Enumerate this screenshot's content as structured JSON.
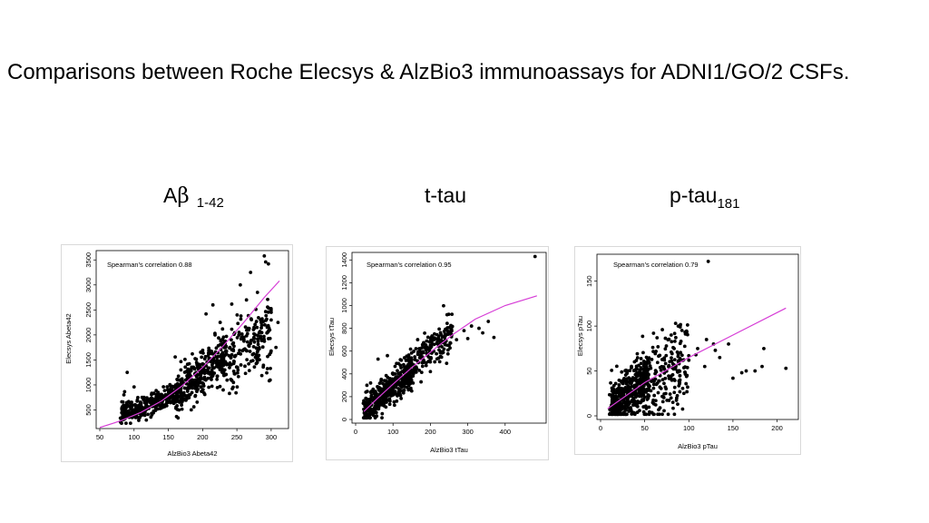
{
  "slide": {
    "title": "Comparisons between Roche Elecsys & AlzBio3 immunoassays for ADNI1/GO/2 CSFs."
  },
  "panels": [
    {
      "main": "A",
      "greek": "β",
      "sub": " 1-42"
    },
    {
      "main": "t-tau",
      "greek": "",
      "sub": ""
    },
    {
      "main": "p-tau",
      "greek": "",
      "sub": "181"
    }
  ],
  "chart_data": [
    {
      "type": "scatter",
      "xlabel": "AlzBio3 Abeta42",
      "ylabel": "Elecsys Abeta42",
      "annotation": "Spearman's correlation 0.88",
      "xlim": [
        50,
        320
      ],
      "ylim": [
        200,
        3650
      ],
      "xticks": [
        "50",
        "100",
        "150",
        "200",
        "250",
        "300"
      ],
      "yticks": [
        "500",
        "1000",
        "1500",
        "2000",
        "2500",
        "3000",
        "3500"
      ],
      "point_color": "#000000",
      "fit_color": "#d63cd6",
      "fit_line": [
        [
          50,
          150
        ],
        [
          80,
          280
        ],
        [
          110,
          450
        ],
        [
          140,
          680
        ],
        [
          170,
          980
        ],
        [
          200,
          1350
        ],
        [
          230,
          1780
        ],
        [
          260,
          2250
        ],
        [
          290,
          2750
        ],
        [
          312,
          3080
        ]
      ],
      "points": [
        [
          290,
          3580
        ],
        [
          292,
          3460
        ],
        [
          296,
          3420
        ],
        [
          270,
          3250
        ],
        [
          300,
          2300
        ],
        [
          310,
          2250
        ],
        [
          307,
          1750
        ],
        [
          255,
          3000
        ],
        [
          280,
          2850
        ],
        [
          264,
          2700
        ],
        [
          205,
          2420
        ],
        [
          215,
          2600
        ],
        [
          200,
          1420
        ],
        [
          185,
          1620
        ],
        [
          160,
          1560
        ],
        [
          100,
          960
        ],
        [
          90,
          1250
        ],
        [
          230,
          900
        ],
        [
          245,
          1050
        ],
        [
          120,
          560
        ],
        [
          140,
          700
        ],
        [
          170,
          1120
        ],
        [
          195,
          1320
        ],
        [
          220,
          1560
        ],
        [
          240,
          1750
        ],
        [
          260,
          1950
        ],
        [
          275,
          2150
        ]
      ],
      "cloud": [
        {
          "x0": 80,
          "x1": 170,
          "baseY": 420,
          "slope": 4.6,
          "spread": 260,
          "n": 340
        },
        {
          "x0": 160,
          "x1": 235,
          "baseY": 820,
          "slope": 11,
          "spread": 560,
          "n": 300
        },
        {
          "x0": 225,
          "x1": 300,
          "baseY": 1400,
          "slope": 9,
          "spread": 760,
          "n": 200
        }
      ]
    },
    {
      "type": "scatter",
      "xlabel": "AlzBio3 tTau",
      "ylabel": "Elecsys tTau",
      "annotation": "Spearman's correlation 0.95",
      "xlim": [
        0,
        500
      ],
      "ylim": [
        0,
        1450
      ],
      "xticks": [
        "0",
        "100",
        "200",
        "300",
        "400"
      ],
      "yticks": [
        "0",
        "200",
        "400",
        "600",
        "800",
        "1000",
        "1200",
        "1400"
      ],
      "point_color": "#000000",
      "fit_color": "#d63cd6",
      "fit_line": [
        [
          22,
          70
        ],
        [
          60,
          190
        ],
        [
          100,
          310
        ],
        [
          150,
          455
        ],
        [
          200,
          590
        ],
        [
          260,
          745
        ],
        [
          320,
          880
        ],
        [
          400,
          1000
        ],
        [
          485,
          1085
        ]
      ],
      "points": [
        [
          480,
          1430
        ],
        [
          340,
          760
        ],
        [
          330,
          800
        ],
        [
          310,
          820
        ],
        [
          300,
          710
        ],
        [
          370,
          720
        ],
        [
          355,
          860
        ],
        [
          290,
          780
        ],
        [
          270,
          700
        ],
        [
          250,
          650
        ],
        [
          60,
          530
        ],
        [
          85,
          560
        ],
        [
          150,
          250
        ],
        [
          175,
          330
        ],
        [
          200,
          420
        ],
        [
          40,
          320
        ],
        [
          30,
          50
        ],
        [
          120,
          210
        ]
      ],
      "cloud": [
        {
          "x0": 20,
          "x1": 150,
          "baseY": 80,
          "slope": 2.7,
          "spread": 150,
          "n": 420
        },
        {
          "x0": 140,
          "x1": 260,
          "baseY": 430,
          "slope": 2.9,
          "spread": 190,
          "n": 180
        }
      ]
    },
    {
      "type": "scatter",
      "xlabel": "AlzBio3 pTau",
      "ylabel": "Elecsys pTau",
      "annotation": "Spearman's correlation 0.79",
      "xlim": [
        0,
        220
      ],
      "ylim": [
        0,
        178
      ],
      "xticks": [
        "0",
        "50",
        "100",
        "150",
        "200"
      ],
      "yticks": [
        "0",
        "50",
        "100",
        "150"
      ],
      "point_color": "#000000",
      "fit_color": "#d63cd6",
      "fit_line": [
        [
          8,
          8
        ],
        [
          50,
          37
        ],
        [
          100,
          65
        ],
        [
          150,
          90
        ],
        [
          210,
          120
        ]
      ],
      "points": [
        [
          122,
          172
        ],
        [
          210,
          53
        ],
        [
          185,
          75
        ],
        [
          183,
          55
        ],
        [
          175,
          50
        ],
        [
          165,
          50
        ],
        [
          160,
          48
        ],
        [
          150,
          42
        ],
        [
          145,
          80
        ],
        [
          135,
          65
        ],
        [
          130,
          73
        ],
        [
          120,
          85
        ],
        [
          110,
          75
        ],
        [
          108,
          68
        ],
        [
          100,
          62
        ],
        [
          98,
          45
        ],
        [
          90,
          40
        ],
        [
          88,
          100
        ],
        [
          85,
          103
        ],
        [
          80,
          90
        ],
        [
          70,
          96
        ],
        [
          60,
          92
        ],
        [
          128,
          80
        ],
        [
          118,
          55
        ]
      ],
      "cloud": [
        {
          "x0": 10,
          "x1": 55,
          "baseY": 8,
          "slope": 0.75,
          "spread": 30,
          "n": 420
        },
        {
          "x0": 45,
          "x1": 100,
          "baseY": 30,
          "slope": 0.55,
          "spread": 55,
          "n": 210
        }
      ]
    }
  ]
}
